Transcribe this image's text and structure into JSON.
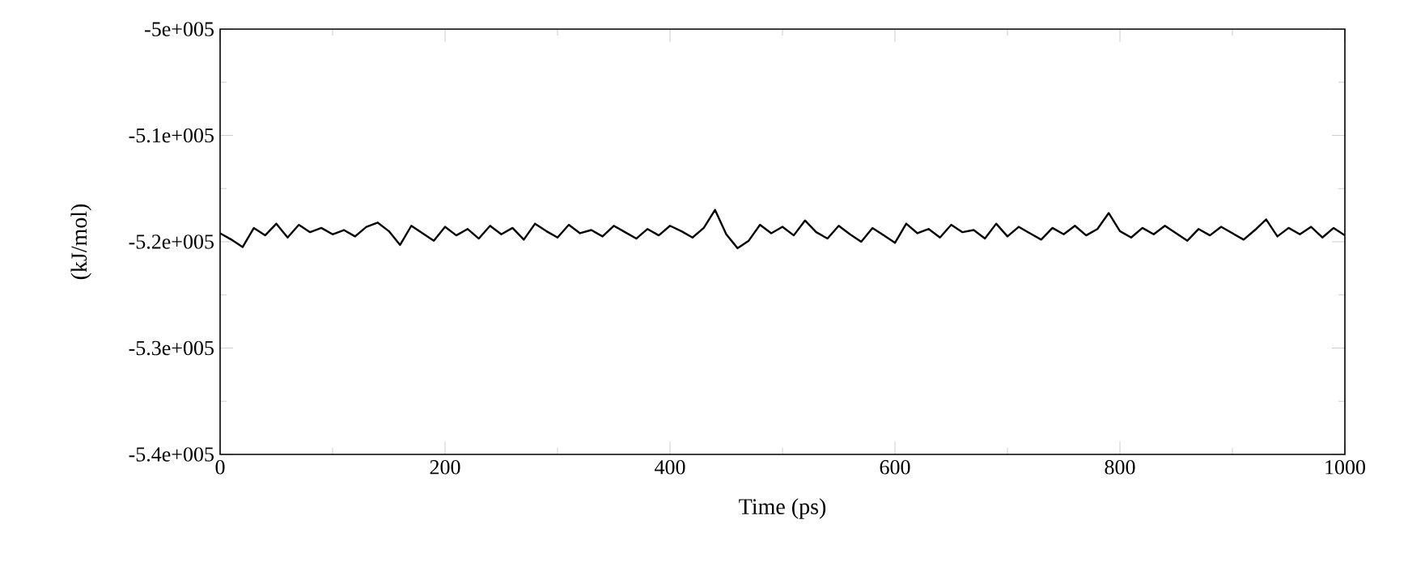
{
  "chart_data": {
    "type": "line",
    "xlabel": "Time (ps)",
    "ylabel": "(kJ/mol)",
    "x": [
      0,
      10,
      20,
      30,
      40,
      50,
      60,
      70,
      80,
      90,
      100,
      110,
      120,
      130,
      140,
      150,
      160,
      170,
      180,
      190,
      200,
      210,
      220,
      230,
      240,
      250,
      260,
      270,
      280,
      290,
      300,
      310,
      320,
      330,
      340,
      350,
      360,
      370,
      380,
      390,
      400,
      410,
      420,
      430,
      440,
      450,
      460,
      470,
      480,
      490,
      500,
      510,
      520,
      530,
      540,
      550,
      560,
      570,
      580,
      590,
      600,
      610,
      620,
      630,
      640,
      650,
      660,
      670,
      680,
      690,
      700,
      710,
      720,
      730,
      740,
      750,
      760,
      770,
      780,
      790,
      800,
      810,
      820,
      830,
      840,
      850,
      860,
      870,
      880,
      890,
      900,
      910,
      920,
      930,
      940,
      950,
      960,
      970,
      980,
      990,
      1000
    ],
    "series": [
      {
        "color": "#000000",
        "values": [
          -519200,
          -519800,
          -520500,
          -518700,
          -519400,
          -518300,
          -519600,
          -518400,
          -519100,
          -518700,
          -519300,
          -518900,
          -519500,
          -518600,
          -518200,
          -519000,
          -520300,
          -518500,
          -519200,
          -519900,
          -518600,
          -519400,
          -518800,
          -519700,
          -518500,
          -519300,
          -518700,
          -519800,
          -518300,
          -519000,
          -519600,
          -518400,
          -519200,
          -518900,
          -519500,
          -518500,
          -519100,
          -519700,
          -518800,
          -519400,
          -518500,
          -519000,
          -519600,
          -518700,
          -517000,
          -519300,
          -520600,
          -519900,
          -518400,
          -519200,
          -518600,
          -519400,
          -518000,
          -519100,
          -519700,
          -518500,
          -519300,
          -520000,
          -518700,
          -519400,
          -520100,
          -518300,
          -519200,
          -518800,
          -519600,
          -518400,
          -519100,
          -518900,
          -519700,
          -518300,
          -519500,
          -518600,
          -519200,
          -519800,
          -518700,
          -519300,
          -518500,
          -519400,
          -518800,
          -517300,
          -519000,
          -519600,
          -518700,
          -519300,
          -518500,
          -519200,
          -519900,
          -518800,
          -519400,
          -518600,
          -519200,
          -519800,
          -518900,
          -517900,
          -519500,
          -518700,
          -519300,
          -518600,
          -519600,
          -518700,
          -519400
        ]
      }
    ],
    "xlim": [
      0,
      1000
    ],
    "ylim": [
      -540000,
      -500000
    ],
    "xticks": [
      0,
      200,
      400,
      600,
      800,
      1000
    ],
    "yticks": [
      {
        "value": -540000,
        "label": "-5.4e+005"
      },
      {
        "value": -530000,
        "label": "-5.3e+005"
      },
      {
        "value": -520000,
        "label": "-5.2e+005"
      },
      {
        "value": -510000,
        "label": "-5.1e+005"
      },
      {
        "value": -500000,
        "label": "-5e+005"
      }
    ],
    "marker": "none",
    "line_style": "solid"
  }
}
